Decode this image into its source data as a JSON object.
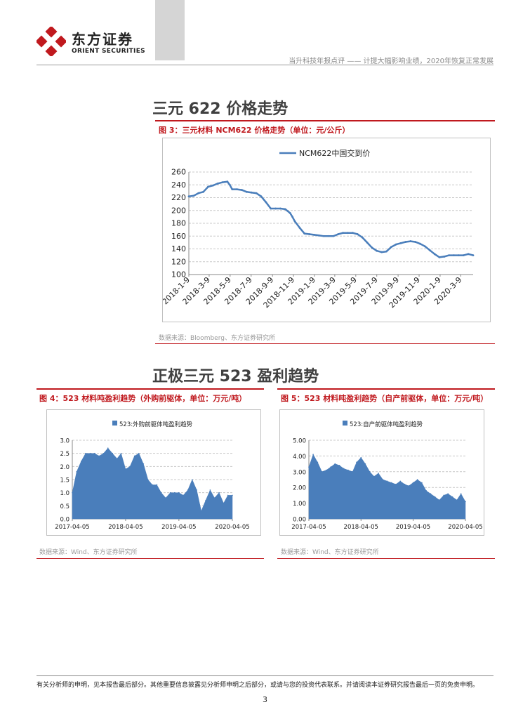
{
  "header": {
    "brand_cn": "东方证券",
    "brand_en": "ORIENT SECURITIES",
    "report_title": "当升科技年报点评 —— 计提大幅影响业绩，2020年恢复正常发展"
  },
  "sections": {
    "s1_title": "三元 622 价格走势",
    "s2_title": "正极三元 523 盈利趋势"
  },
  "figures": {
    "fig3_caption": "图 3：三元材料 NCM622 价格走势（单位：元/公斤）",
    "fig3_source": "数据来源：Bloomberg、东方证券研究所",
    "fig4_caption": "图 4：523 材料吨盈利趋势（外购前驱体，单位：万元/吨）",
    "fig4_source": "数据来源：Wind、东方证券研究所",
    "fig5_caption": "图 5：523 材料吨盈利趋势（自产前驱体，单位：万元/吨）",
    "fig5_source": "数据来源：Wind、东方证券研究所"
  },
  "footer": {
    "disclaimer": "有关分析师的申明，见本报告最后部分。其他重要信息披露见分析师申明之后部分，或请与您的投资代表联系。并请阅读本证券研究报告最后一页的免责申明。",
    "page_number": "3"
  },
  "colors": {
    "series": "#4a7ebb",
    "accent_red": "#c0191e"
  },
  "chart_data": [
    {
      "type": "line",
      "series": [
        {
          "name": "NCM622中国交到价",
          "x": [
            "2018-01-09",
            "2018-01-23",
            "2018-02-06",
            "2018-02-20",
            "2018-03-06",
            "2018-03-20",
            "2018-04-03",
            "2018-04-17",
            "2018-05-01",
            "2018-05-08",
            "2018-05-15",
            "2018-05-29",
            "2018-06-12",
            "2018-06-26",
            "2018-07-10",
            "2018-07-24",
            "2018-08-07",
            "2018-08-21",
            "2018-09-04",
            "2018-09-18",
            "2018-10-02",
            "2018-10-16",
            "2018-10-30",
            "2018-11-06",
            "2018-11-13",
            "2018-11-27",
            "2018-12-11",
            "2018-12-25",
            "2019-01-08",
            "2019-01-22",
            "2019-02-05",
            "2019-02-19",
            "2019-03-05",
            "2019-03-19",
            "2019-04-02",
            "2019-04-16",
            "2019-04-30",
            "2019-05-14",
            "2019-05-28",
            "2019-06-11",
            "2019-06-25",
            "2019-07-09",
            "2019-07-23",
            "2019-08-06",
            "2019-08-20",
            "2019-09-03",
            "2019-09-17",
            "2019-10-01",
            "2019-10-15",
            "2019-10-29",
            "2019-11-12",
            "2019-11-26",
            "2019-12-10",
            "2019-12-24",
            "2020-01-07",
            "2020-01-21",
            "2020-02-04",
            "2020-02-18",
            "2020-03-03",
            "2020-03-17",
            "2020-03-31",
            "2020-04-14"
          ],
          "values": [
            222,
            223,
            227,
            229,
            237,
            239,
            242,
            244,
            245,
            240,
            233,
            233,
            232,
            229,
            228,
            227,
            222,
            213,
            203,
            203,
            203,
            202,
            196,
            190,
            183,
            173,
            164,
            163,
            162,
            161,
            160,
            160,
            160,
            163,
            165,
            165,
            165,
            163,
            158,
            150,
            142,
            137,
            135,
            136,
            143,
            147,
            149,
            151,
            152,
            151,
            148,
            144,
            138,
            132,
            127,
            128,
            130,
            130,
            130,
            130,
            132,
            130
          ]
        }
      ],
      "ylim": [
        100,
        260
      ],
      "yticks": [
        "100",
        "120",
        "140",
        "160",
        "180",
        "200",
        "220",
        "240",
        "260"
      ],
      "xticks": [
        "2018-1-9",
        "2018-3-9",
        "2018-5-9",
        "2018-7-9",
        "2018-9-9",
        "2018-11-9",
        "2019-1-9",
        "2019-3-9",
        "2019-5-9",
        "2019-7-9",
        "2019-9-9",
        "2019-11-9",
        "2020-1-9",
        "2020-3-9"
      ],
      "grid": true,
      "legend": "top-center"
    },
    {
      "type": "area",
      "series": [
        {
          "name": "523:外购前驱体吨盈利趋势",
          "x": [
            "2017-04-05",
            "2017-05-05",
            "2017-06-05",
            "2017-07-05",
            "2017-08-05",
            "2017-09-05",
            "2017-10-05",
            "2017-11-05",
            "2017-12-05",
            "2018-01-05",
            "2018-02-05",
            "2018-03-05",
            "2018-04-05",
            "2018-05-05",
            "2018-06-05",
            "2018-07-05",
            "2018-08-05",
            "2018-09-05",
            "2018-10-05",
            "2018-11-05",
            "2018-12-05",
            "2019-01-05",
            "2019-02-05",
            "2019-03-05",
            "2019-04-05",
            "2019-05-05",
            "2019-06-05",
            "2019-07-05",
            "2019-08-05",
            "2019-09-05",
            "2019-10-05",
            "2019-11-05",
            "2019-12-05",
            "2020-01-05",
            "2020-02-05",
            "2020-03-05",
            "2020-04-05"
          ],
          "values": [
            1.0,
            1.8,
            2.2,
            2.5,
            2.5,
            2.5,
            2.4,
            2.5,
            2.7,
            2.5,
            2.3,
            2.5,
            1.9,
            2.0,
            2.4,
            2.5,
            2.1,
            1.5,
            1.3,
            1.3,
            1.0,
            0.8,
            1.0,
            1.0,
            1.0,
            0.9,
            1.1,
            1.5,
            1.1,
            0.3,
            0.7,
            1.1,
            0.8,
            1.0,
            0.6,
            0.9,
            0.9
          ]
        }
      ],
      "ylim": [
        0.0,
        3.0
      ],
      "yticks": [
        "0.0",
        "0.5",
        "1.0",
        "1.5",
        "2.0",
        "2.5",
        "3.0"
      ],
      "xticks": [
        "2017-04-05",
        "2018-04-05",
        "2019-04-05",
        "2020-04-05"
      ],
      "grid": true,
      "legend": "top-center"
    },
    {
      "type": "area",
      "series": [
        {
          "name": "523:自产前驱体吨盈利趋势",
          "x": [
            "2017-04-05",
            "2017-05-05",
            "2017-06-05",
            "2017-07-05",
            "2017-08-05",
            "2017-09-05",
            "2017-10-05",
            "2017-11-05",
            "2017-12-05",
            "2018-01-05",
            "2018-02-05",
            "2018-03-05",
            "2018-04-05",
            "2018-05-05",
            "2018-06-05",
            "2018-07-05",
            "2018-08-05",
            "2018-09-05",
            "2018-10-05",
            "2018-11-05",
            "2018-12-05",
            "2019-01-05",
            "2019-02-05",
            "2019-03-05",
            "2019-04-05",
            "2019-05-05",
            "2019-06-05",
            "2019-07-05",
            "2019-08-05",
            "2019-09-05",
            "2019-10-05",
            "2019-11-05",
            "2019-12-05",
            "2020-01-05",
            "2020-02-05",
            "2020-03-05",
            "2020-04-05"
          ],
          "values": [
            3.3,
            4.1,
            3.6,
            3.0,
            3.1,
            3.3,
            3.5,
            3.4,
            3.2,
            3.1,
            3.0,
            3.6,
            3.9,
            3.5,
            3.0,
            2.7,
            2.9,
            2.5,
            2.4,
            2.3,
            2.2,
            2.4,
            2.2,
            2.1,
            2.3,
            2.5,
            2.3,
            1.8,
            1.6,
            1.4,
            1.2,
            1.5,
            1.6,
            1.4,
            1.2,
            1.6,
            1.1
          ]
        }
      ],
      "ylim": [
        0.0,
        5.0
      ],
      "yticks": [
        "0.00",
        "1.00",
        "2.00",
        "3.00",
        "4.00",
        "5.00"
      ],
      "xticks": [
        "2017-04-05",
        "2018-04-05",
        "2019-04-05",
        "2020-04-05"
      ],
      "grid": true,
      "legend": "top-center"
    }
  ]
}
